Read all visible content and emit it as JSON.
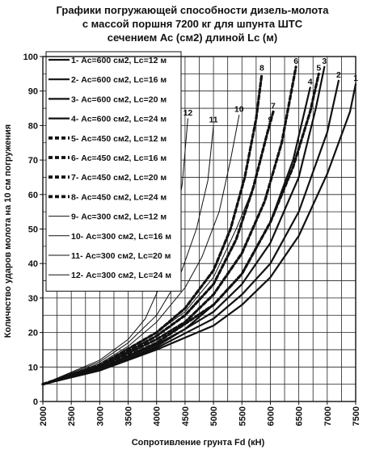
{
  "chart_data": {
    "type": "line",
    "title_lines": [
      "Графики погружающей способности дизель-молота",
      "с массой поршня  7200 кг  для  шпунта  ШТС",
      "сечением Ас (см2)  длиной Lc (м)"
    ],
    "xlabel": "Сопротивление грунта Fd (кН)",
    "ylabel": "Количество ударов молота на 10 см погружения",
    "xlim": [
      2000,
      7500
    ],
    "ylim": [
      0,
      100
    ],
    "x_ticks": [
      "2000",
      "2500",
      "3000",
      "3500",
      "4000",
      "4500",
      "5000",
      "5500",
      "6000",
      "6500",
      "7000",
      "7500"
    ],
    "y_ticks": [
      "0",
      "10",
      "20",
      "30",
      "40",
      "50",
      "60",
      "70",
      "80",
      "90",
      "100"
    ],
    "grid": true,
    "legend_position": "top-left",
    "series": [
      {
        "name": "1- Ас=600 см2, Lc=12 м",
        "label": "1",
        "style": "thick-solid",
        "x": [
          2000,
          3000,
          4000,
          5000,
          5500,
          6000,
          6500,
          7000,
          7400,
          7500
        ],
        "y": [
          5,
          9,
          15,
          22,
          28,
          36,
          48,
          66,
          84,
          92
        ]
      },
      {
        "name": "2- Ас=600 см2, Lc=16 м",
        "label": "2",
        "style": "thick-solid",
        "x": [
          2000,
          3000,
          4000,
          5000,
          5500,
          6000,
          6500,
          7000,
          7200
        ],
        "y": [
          5,
          9,
          15.5,
          24,
          31,
          40,
          55,
          78,
          93
        ]
      },
      {
        "name": "3- Ас=600 см2, Lc=20 м",
        "label": "3",
        "style": "thick-solid",
        "x": [
          2000,
          3000,
          4000,
          5000,
          5500,
          6000,
          6500,
          6800,
          6950
        ],
        "y": [
          5,
          9,
          16,
          26,
          34,
          46,
          65,
          85,
          97
        ]
      },
      {
        "name": "4- Ас=600 см2, Lc=24 м",
        "label": "4",
        "style": "thick-solid",
        "x": [
          2000,
          3000,
          4000,
          4500,
          5000,
          5500,
          6000,
          6400,
          6700
        ],
        "y": [
          5,
          9.5,
          16.5,
          21,
          28,
          37,
          52,
          70,
          91
        ]
      },
      {
        "name": "5- Ас=450 см2, Lc=12 м",
        "label": "5",
        "style": "thick-dash",
        "x": [
          2000,
          3000,
          4000,
          5000,
          5500,
          6000,
          6400,
          6700,
          6850
        ],
        "y": [
          5,
          9.5,
          17,
          28,
          37,
          52,
          68,
          84,
          95
        ]
      },
      {
        "name": "6- Ас=450 см2, Lc=16 м",
        "label": "6",
        "style": "thick-dash",
        "x": [
          2000,
          3000,
          4000,
          4500,
          5000,
          5500,
          5900,
          6200,
          6450
        ],
        "y": [
          5,
          10,
          18,
          23,
          31,
          43,
          58,
          75,
          97
        ]
      },
      {
        "name": "7- Ас=450 см2, Lc=20 м",
        "label": "7",
        "style": "thick-dash",
        "x": [
          2000,
          3000,
          4000,
          4500,
          5000,
          5400,
          5700,
          5950,
          6050
        ],
        "y": [
          5,
          10,
          19,
          25,
          34,
          47,
          62,
          78,
          84
        ]
      },
      {
        "name": "8- Ас=450 см2, Lc=24 м",
        "label": "8",
        "style": "thick-dash",
        "x": [
          2000,
          3000,
          4000,
          4500,
          5000,
          5300,
          5550,
          5750,
          5850
        ],
        "y": [
          5,
          10.5,
          20,
          27,
          38,
          50,
          65,
          82,
          95
        ]
      },
      {
        "name": "9- Ас=300 см2, Lc=12 м",
        "label": "9",
        "style": "thin-solid",
        "x": [
          2000,
          3000,
          4000,
          4500,
          5000,
          5400,
          5700,
          5900,
          6000
        ],
        "y": [
          5,
          10.5,
          20,
          26,
          36,
          50,
          62,
          75,
          80
        ]
      },
      {
        "name": "10- Ас=300 см2, Lc=16 м",
        "label": "10",
        "style": "thin-solid",
        "x": [
          2000,
          3000,
          3500,
          4000,
          4500,
          4800,
          5100,
          5300,
          5450
        ],
        "y": [
          5,
          11,
          16,
          23,
          33,
          42,
          55,
          70,
          83
        ]
      },
      {
        "name": "11- Ас=300 см2, Lc=20 м",
        "label": "11",
        "style": "thin-solid",
        "x": [
          2000,
          3000,
          3500,
          4000,
          4400,
          4700,
          4900,
          5000
        ],
        "y": [
          5,
          11.5,
          17,
          25,
          36,
          50,
          64,
          80
        ]
      },
      {
        "name": "12- Ас=300 см2, Lc=24 м",
        "label": "12",
        "style": "thin-solid",
        "x": [
          2000,
          3000,
          3500,
          3800,
          4100,
          4300,
          4450,
          4550
        ],
        "y": [
          5,
          12,
          18,
          24,
          35,
          48,
          63,
          82
        ]
      }
    ]
  }
}
